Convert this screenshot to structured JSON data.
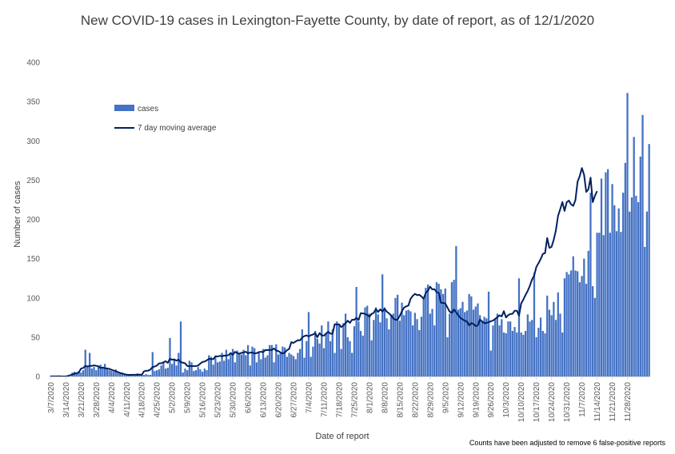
{
  "chart_data": {
    "type": "bar",
    "title": "New COVID-19 cases in Lexington-Fayette County, by date of report, as of 12/1/2020",
    "xlabel": "Date of report",
    "ylabel": "Number of cases",
    "ylim": [
      0,
      400
    ],
    "y_ticks": [
      0,
      50,
      100,
      150,
      200,
      250,
      300,
      350,
      400
    ],
    "x_tick_labels": [
      "3/7/2020",
      "3/14/2020",
      "3/21/2020",
      "3/28/2020",
      "4/4/2020",
      "4/11/2020",
      "4/18/2020",
      "4/25/2020",
      "5/2/2020",
      "5/9/2020",
      "5/16/2020",
      "5/23/2020",
      "5/30/2020",
      "6/6/2020",
      "6/13/2020",
      "6/20/2020",
      "6/27/2020",
      "7/4/2020",
      "7/11/2020",
      "7/18/2020",
      "7/25/2020",
      "8/1/2020",
      "8/8/2020",
      "8/15/2020",
      "8/22/2020",
      "8/29/2020",
      "9/5/2020",
      "9/12/2020",
      "9/19/2020",
      "9/26/2020",
      "10/3/2020",
      "10/10/2020",
      "10/17/2020",
      "10/24/2020",
      "10/31/2020",
      "11/7/2020",
      "11/14/2020",
      "11/21/2020",
      "11/28/2020"
    ],
    "x_start": "3/7/2020",
    "x_end": "12/1/2020",
    "grid": false,
    "legend_position": "upper-left",
    "series": [
      {
        "name": "cases",
        "kind": "bar",
        "color": "#4472C4",
        "values": [
          1,
          0,
          0,
          1,
          0,
          0,
          0,
          0,
          0,
          0,
          5,
          6,
          5,
          7,
          5,
          8,
          34,
          12,
          30,
          10,
          12,
          8,
          13,
          15,
          12,
          16,
          10,
          8,
          7,
          6,
          9,
          5,
          4,
          3,
          3,
          2,
          3,
          1,
          2,
          1,
          4,
          2,
          3,
          2,
          3,
          2,
          2,
          31,
          7,
          8,
          9,
          14,
          18,
          10,
          11,
          49,
          16,
          21,
          14,
          30,
          70,
          5,
          10,
          8,
          20,
          18,
          7,
          8,
          12,
          9,
          6,
          10,
          8,
          27,
          25,
          15,
          24,
          18,
          19,
          30,
          20,
          34,
          22,
          28,
          35,
          18,
          33,
          30,
          28,
          34,
          27,
          40,
          14,
          38,
          36,
          18,
          30,
          22,
          35,
          24,
          27,
          40,
          40,
          18,
          41,
          28,
          30,
          38,
          37,
          25,
          30,
          28,
          26,
          22,
          30,
          35,
          60,
          24,
          45,
          82,
          25,
          38,
          58,
          48,
          42,
          65,
          36,
          55,
          70,
          45,
          60,
          30,
          70,
          65,
          35,
          68,
          80,
          50,
          45,
          30,
          64,
          114,
          70,
          58,
          52,
          88,
          90,
          80,
          46,
          72,
          88,
          79,
          69,
          130,
          88,
          74,
          60,
          78,
          80,
          100,
          104,
          71,
          94,
          78,
          84,
          85,
          83,
          65,
          81,
          73,
          59,
          76,
          100,
          113,
          117,
          80,
          86,
          65,
          120,
          118,
          111,
          105,
          112,
          50,
          80,
          120,
          123,
          166,
          85,
          87,
          95,
          82,
          84,
          105,
          102,
          85,
          89,
          93,
          78,
          71,
          76,
          74,
          108,
          33,
          65,
          74,
          80,
          65,
          73,
          56,
          55,
          70,
          70,
          58,
          63,
          56,
          125,
          56,
          53,
          58,
          79,
          70,
          72,
          132,
          50,
          62,
          75,
          58,
          55,
          103,
          85,
          78,
          95,
          72,
          107,
          80,
          56,
          125,
          133,
          130,
          135,
          153,
          135,
          134,
          120,
          128,
          150,
          118,
          160,
          234,
          115,
          100,
          183,
          183,
          252,
          180,
          260,
          264,
          183,
          245,
          218,
          185,
          214,
          184,
          234,
          272,
          361,
          210,
          228,
          305,
          230,
          222,
          280,
          333,
          165,
          210,
          296
        ]
      },
      {
        "name": "7 day moving average",
        "kind": "line",
        "color": "#002060",
        "values": [
          0.14,
          0.14,
          0.14,
          0.14,
          0.29,
          0.0,
          0.0,
          0.0,
          0.71,
          1.57,
          2.43,
          3.43,
          4.14,
          5.14,
          10.0,
          10.86,
          13.43,
          12.71,
          13.43,
          13.43,
          14.14,
          13.57,
          13.0,
          10.86,
          11.43,
          10.57,
          10.14,
          9.71,
          8.57,
          7.57,
          6.71,
          5.71,
          4.43,
          3.86,
          3.0,
          2.29,
          2.0,
          2.0,
          2.14,
          2.14,
          2.0,
          2.43,
          2.14,
          6.43,
          7.29,
          7.43,
          8.86,
          12.0,
          12.71,
          13.86,
          16.71,
          16.86,
          18.0,
          19.43,
          17.43,
          22.57,
          21.29,
          21.71,
          20.14,
          21.43,
          18.14,
          17.57,
          16.71,
          13.43,
          13.14,
          13.43,
          13.14,
          13.29,
          13.86,
          16.43,
          18.43,
          19.0,
          20.57,
          22.43,
          22.29,
          22.0,
          25.71,
          25.43,
          26.29,
          25.71,
          26.57,
          26.57,
          27.14,
          29.86,
          27.43,
          31.29,
          29.86,
          29.0,
          30.14,
          30.57,
          31.43,
          29.43,
          30.43,
          30.43,
          29.29,
          29.71,
          31.0,
          31.43,
          31.0,
          33.71,
          33.57,
          33.86,
          33.71,
          35.71,
          33.0,
          32.29,
          30.57,
          29.14,
          30.71,
          33.43,
          35.14,
          43.71,
          42.71,
          44.57,
          46.14,
          46.0,
          49.71,
          51.43,
          52.29,
          51.0,
          52.57,
          53.43,
          55.14,
          50.0,
          55.14,
          52.29,
          52.0,
          54.71,
          57.0,
          54.57,
          54.29,
          66.57,
          66.14,
          66.43,
          62.86,
          65.0,
          67.86,
          71.0,
          68.29,
          72.29,
          72.14,
          74.71,
          71.86,
          80.57,
          80.29,
          79.71,
          78.43,
          76.14,
          79.57,
          81.0,
          85.86,
          82.14,
          85.43,
          82.86,
          86.14,
          82.57,
          80.43,
          77.86,
          73.86,
          72.14,
          72.43,
          77.14,
          83.14,
          87.71,
          89.29,
          90.43,
          98.86,
          102.71,
          105.14,
          103.71,
          104.0,
          101.86,
          99.0,
          106.43,
          109.29,
          114.43,
          110.86,
          111.14,
          107.43,
          106.43,
          93.71,
          93.71,
          93.0,
          87.71,
          82.57,
          80.86,
          85.43,
          81.71,
          78.0,
          74.43,
          72.71,
          71.0,
          69.86,
          65.0,
          68.0,
          66.86,
          64.14,
          65.0,
          72.43,
          70.0,
          67.71,
          68.29,
          69.0,
          70.29,
          71.14,
          73.29,
          75.43,
          77.86,
          76.43,
          83.14,
          75.14,
          78.14,
          79.43,
          79.86,
          83.71,
          83.71,
          77.57,
          93.0,
          98.0,
          103.86,
          108.86,
          115.57,
          123.43,
          128.57,
          139.57,
          144.29,
          149.57,
          156.14,
          157.0,
          176.29,
          163.71,
          165.0,
          174.0,
          186.0,
          204.57,
          213.0,
          222.14,
          210.86,
          222.0,
          224.0,
          219.14,
          217.29,
          224.43,
          248.0,
          255.14,
          265.43,
          256.86,
          235.0,
          238.43,
          253.14,
          222.0,
          230.14,
          236.0
        ]
      }
    ]
  }
}
